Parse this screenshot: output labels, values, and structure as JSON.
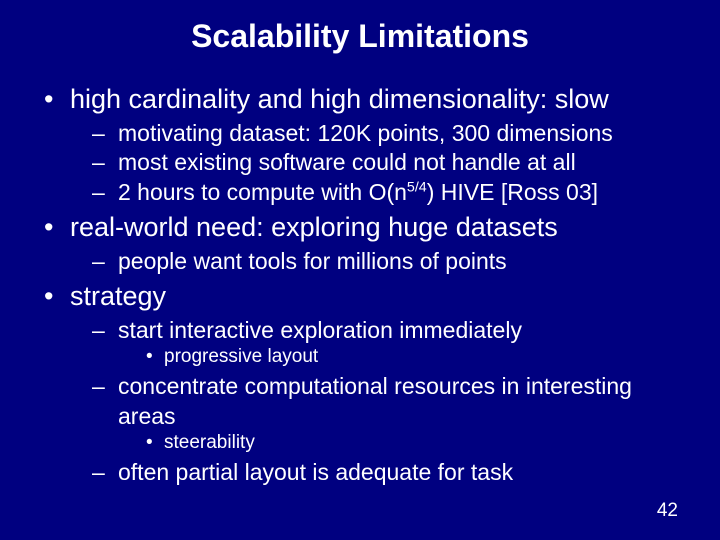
{
  "background_color": "#000080",
  "text_color": "#ffffff",
  "title": "Scalability Limitations",
  "title_fontsize": 32,
  "lvl1_fontsize": 27,
  "lvl2_fontsize": 23,
  "lvl3_fontsize": 19,
  "page_number": "42",
  "bullets": [
    {
      "text": "high cardinality and high dimensionality: slow",
      "sub": [
        {
          "text": "motivating dataset: 120K points, 300 dimensions"
        },
        {
          "text": "most existing software could not handle at all"
        },
        {
          "text_pre": "2 hours to compute with O(n",
          "sup": "5/4",
          "text_post": ") HIVE [Ross 03]"
        }
      ]
    },
    {
      "text": "real-world need: exploring huge datasets",
      "sub": [
        {
          "text": "people want tools for millions of points"
        }
      ]
    },
    {
      "text": "strategy",
      "sub": [
        {
          "text": "start interactive exploration immediately",
          "sub": [
            {
              "text": "progressive layout"
            }
          ]
        },
        {
          "text": "concentrate computational resources in interesting areas",
          "sub": [
            {
              "text": "steerability"
            }
          ]
        },
        {
          "text": "often partial layout is adequate for task"
        }
      ]
    }
  ]
}
